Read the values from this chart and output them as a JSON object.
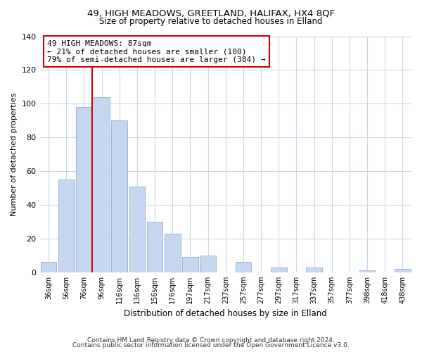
{
  "title1": "49, HIGH MEADOWS, GREETLAND, HALIFAX, HX4 8QF",
  "title2": "Size of property relative to detached houses in Elland",
  "xlabel": "Distribution of detached houses by size in Elland",
  "ylabel": "Number of detached properties",
  "bar_labels": [
    "36sqm",
    "56sqm",
    "76sqm",
    "96sqm",
    "116sqm",
    "136sqm",
    "156sqm",
    "176sqm",
    "197sqm",
    "217sqm",
    "237sqm",
    "257sqm",
    "277sqm",
    "297sqm",
    "317sqm",
    "337sqm",
    "357sqm",
    "377sqm",
    "398sqm",
    "418sqm",
    "438sqm"
  ],
  "bar_values": [
    6,
    55,
    98,
    104,
    90,
    51,
    30,
    23,
    9,
    10,
    0,
    6,
    0,
    3,
    0,
    3,
    0,
    0,
    1,
    0,
    2
  ],
  "bar_color": "#c5d8f0",
  "bar_edge_color": "#9ab8d8",
  "vline_color": "#cc0000",
  "vline_x_index": 2,
  "ylim": [
    0,
    140
  ],
  "yticks": [
    0,
    20,
    40,
    60,
    80,
    100,
    120,
    140
  ],
  "annotation_title": "49 HIGH MEADOWS: 87sqm",
  "annotation_line1": "← 21% of detached houses are smaller (100)",
  "annotation_line2": "79% of semi-detached houses are larger (384) →",
  "annotation_box_color": "#ffffff",
  "annotation_box_edge": "#cc0000",
  "footer1": "Contains HM Land Registry data © Crown copyright and database right 2024.",
  "footer2": "Contains public sector information licensed under the Open Government Licence v3.0.",
  "background_color": "#ffffff",
  "grid_color": "#c8d8e8"
}
